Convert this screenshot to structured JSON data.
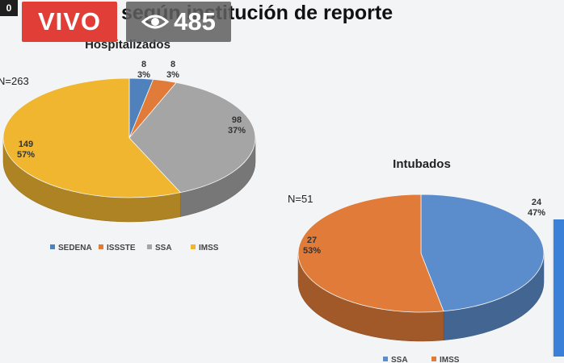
{
  "overlay": {
    "corner_text": "0",
    "live_label": "VIVO",
    "view_count": "485"
  },
  "slide_title": "según institución de reporte",
  "chart_data": [
    {
      "type": "pie",
      "title": "Hospitalizados",
      "n_label": "N=263",
      "legend_placement": "bottom",
      "categories": [
        "SEDENA",
        "ISSSTE",
        "SSA",
        "IMSS"
      ],
      "values": [
        8,
        8,
        98,
        149
      ],
      "percent_labels": [
        "3%",
        "3%",
        "37%",
        "57%"
      ],
      "colors": [
        "#4f81bd",
        "#e07b39",
        "#a5a5a5",
        "#f0b630"
      ]
    },
    {
      "type": "pie",
      "title": "Intubados",
      "n_label": "N=51",
      "legend_placement": "bottom",
      "categories": [
        "SSA",
        "IMSS"
      ],
      "values": [
        24,
        27
      ],
      "percent_labels": [
        "47%",
        "53%"
      ],
      "colors": [
        "#5b8ccb",
        "#e07b39"
      ]
    }
  ]
}
